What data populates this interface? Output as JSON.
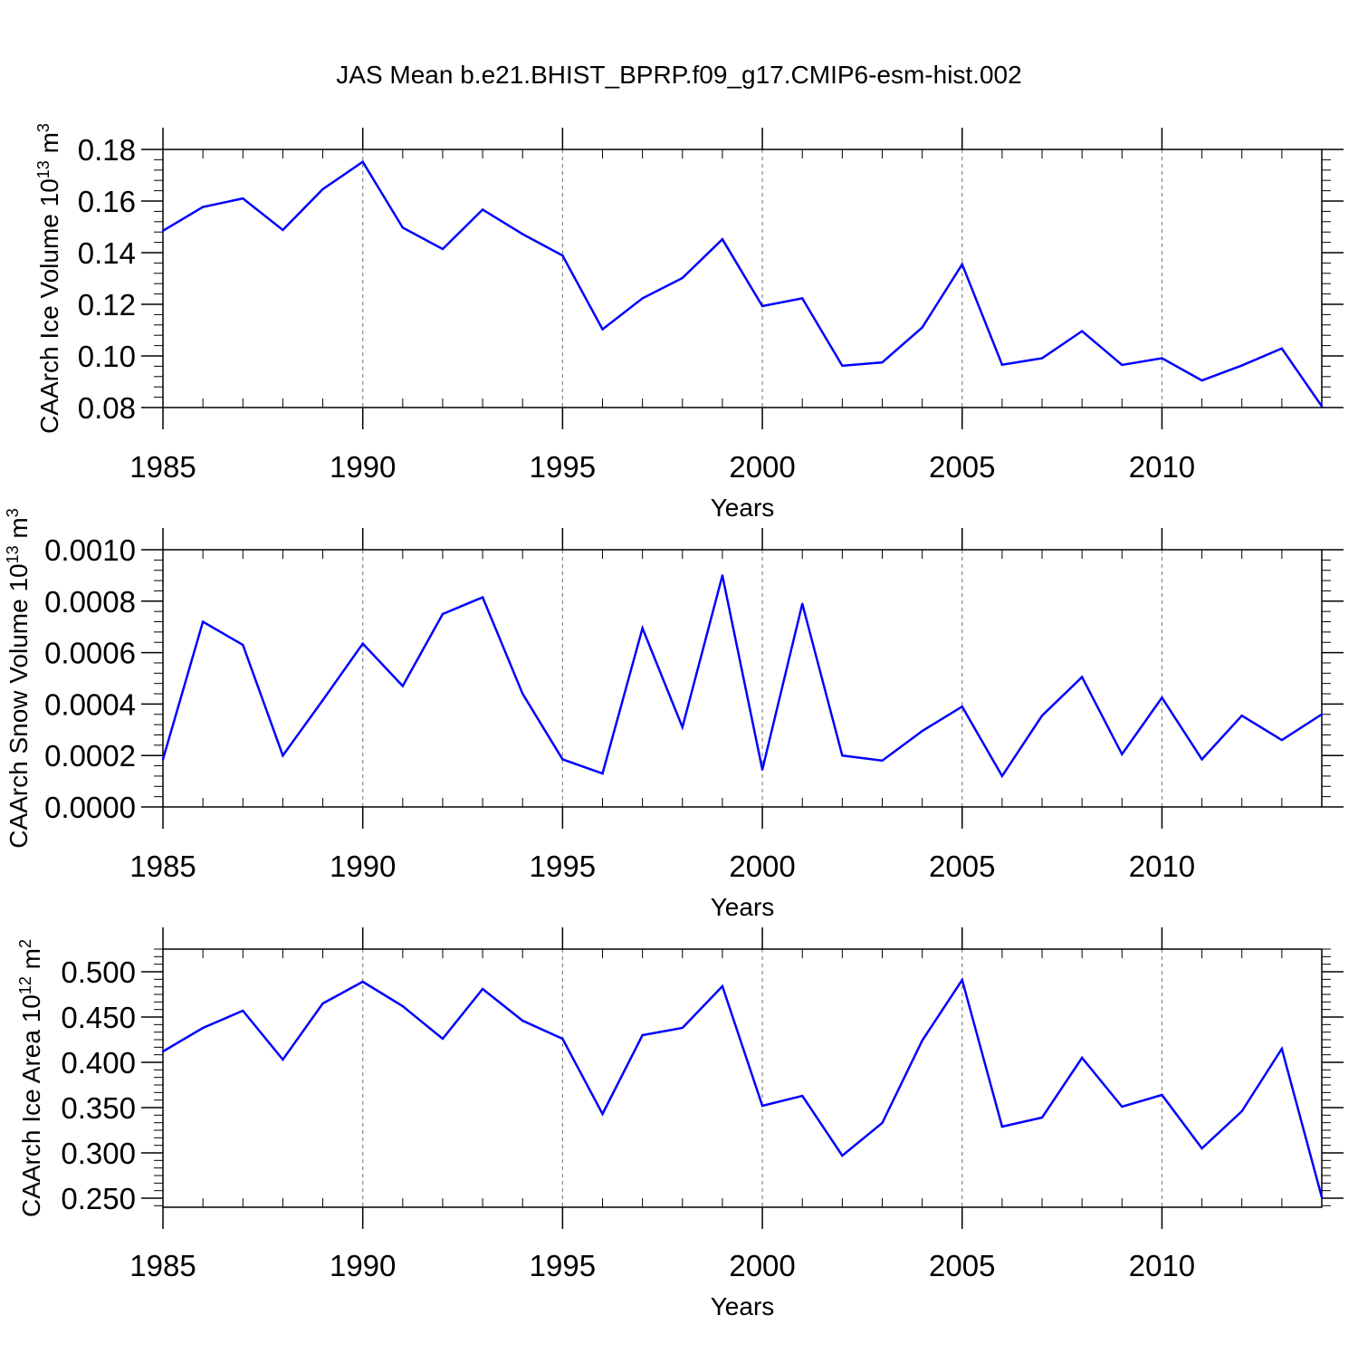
{
  "title": "JAS Mean b.e21.BHIST_BPRP.f09_g17.CMIP6-esm-hist.002",
  "colors": {
    "line": "#0000ff",
    "axis": "#000000",
    "grid": "#888888"
  },
  "chart_data": [
    {
      "type": "line",
      "title": "JAS Mean b.e21.BHIST_BPRP.f09_g17.CMIP6-esm-hist.002",
      "xlabel": "Years",
      "ylabel_text": "CAArch Ice Volume 10",
      "ylabel_exp": "13",
      "ylabel_unit": " m",
      "ylabel_unit_exp": "3",
      "xlim": [
        1985,
        2014
      ],
      "ylim": [
        0.08,
        0.18
      ],
      "xticks": [
        "1985",
        "1990",
        "1995",
        "2000",
        "2005",
        "2010"
      ],
      "yticks": [
        "0.08",
        "0.10",
        "0.12",
        "0.14",
        "0.16",
        "0.18"
      ],
      "x": [
        1985,
        1986,
        1987,
        1988,
        1989,
        1990,
        1991,
        1992,
        1993,
        1994,
        1995,
        1996,
        1997,
        1998,
        1999,
        2000,
        2001,
        2002,
        2003,
        2004,
        2005,
        2006,
        2007,
        2008,
        2009,
        2010,
        2011,
        2012,
        2013,
        2014
      ],
      "series": [
        {
          "name": "CAArch Ice Volume",
          "values": [
            0.1485,
            0.1577,
            0.161,
            0.1488,
            0.1646,
            0.1752,
            0.1497,
            0.1414,
            0.1567,
            0.1472,
            0.1389,
            0.1103,
            0.1223,
            0.1302,
            0.1452,
            0.1193,
            0.1223,
            0.0962,
            0.0975,
            0.111,
            0.1355,
            0.0966,
            0.0991,
            0.1096,
            0.0965,
            0.0991,
            0.0905,
            0.0963,
            0.1029,
            0.0805
          ]
        }
      ]
    },
    {
      "type": "line",
      "xlabel": "Years",
      "ylabel_text": "CAArch Snow Volume 10",
      "ylabel_exp": "13",
      "ylabel_unit": " m",
      "ylabel_unit_exp": "3",
      "xlim": [
        1985,
        2014
      ],
      "ylim": [
        0.0,
        0.001
      ],
      "xticks": [
        "1985",
        "1990",
        "1995",
        "2000",
        "2005",
        "2010"
      ],
      "yticks": [
        "0.0000",
        "0.0002",
        "0.0004",
        "0.0006",
        "0.0008",
        "0.0010"
      ],
      "x": [
        1985,
        1986,
        1987,
        1988,
        1989,
        1990,
        1991,
        1992,
        1993,
        1994,
        1995,
        1996,
        1997,
        1998,
        1999,
        2000,
        2001,
        2002,
        2003,
        2004,
        2005,
        2006,
        2007,
        2008,
        2009,
        2010,
        2011,
        2012,
        2013,
        2014
      ],
      "series": [
        {
          "name": "CAArch Snow Volume",
          "values": [
            0.000185,
            0.00072,
            0.00063,
            0.0002,
            0.000415,
            0.000635,
            0.00047,
            0.00075,
            0.000815,
            0.00044,
            0.000185,
            0.00013,
            0.000695,
            0.00031,
            0.0009,
            0.000145,
            0.00079,
            0.0002,
            0.00018,
            0.000295,
            0.00039,
            0.00012,
            0.000355,
            0.000505,
            0.000205,
            0.000425,
            0.000185,
            0.000355,
            0.00026,
            0.00036
          ]
        }
      ]
    },
    {
      "type": "line",
      "xlabel": "Years",
      "ylabel_text": "CAArch Ice Area 10",
      "ylabel_exp": "12",
      "ylabel_unit": " m",
      "ylabel_unit_exp": "2",
      "xlim": [
        1985,
        2014
      ],
      "ylim": [
        0.24,
        0.525
      ],
      "xticks": [
        "1985",
        "1990",
        "1995",
        "2000",
        "2005",
        "2010"
      ],
      "yticks": [
        "0.250",
        "0.300",
        "0.350",
        "0.400",
        "0.450",
        "0.500"
      ],
      "x": [
        1985,
        1986,
        1987,
        1988,
        1989,
        1990,
        1991,
        1992,
        1993,
        1994,
        1995,
        1996,
        1997,
        1998,
        1999,
        2000,
        2001,
        2002,
        2003,
        2004,
        2005,
        2006,
        2007,
        2008,
        2009,
        2010,
        2011,
        2012,
        2013,
        2014
      ],
      "series": [
        {
          "name": "CAArch Ice Area",
          "values": [
            0.412,
            0.438,
            0.457,
            0.403,
            0.465,
            0.489,
            0.462,
            0.426,
            0.481,
            0.446,
            0.426,
            0.343,
            0.43,
            0.438,
            0.484,
            0.352,
            0.363,
            0.297,
            0.333,
            0.424,
            0.491,
            0.329,
            0.339,
            0.405,
            0.351,
            0.364,
            0.305,
            0.346,
            0.415,
            0.251
          ]
        }
      ]
    }
  ]
}
